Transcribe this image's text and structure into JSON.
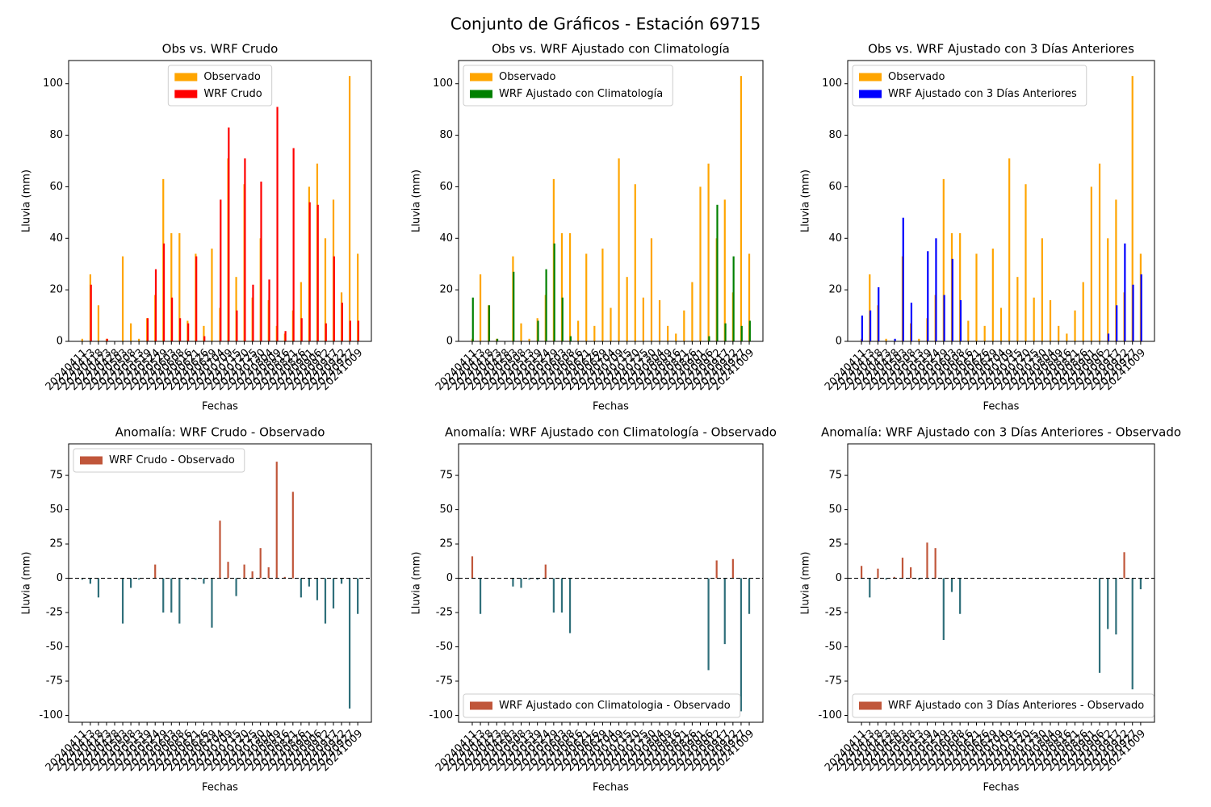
{
  "title": "Conjunto de Gráficos - Estación 69715",
  "chart_data": [
    {
      "type": "bar",
      "title": "Obs vs. WRF Crudo",
      "xlabel": "Fechas",
      "ylabel": "Lluvia (mm)",
      "categories": [
        "20240411",
        "20240413",
        "20240418",
        "20240423",
        "20240428",
        "20240503",
        "20240508",
        "20240513",
        "20240519",
        "20240524",
        "20240529",
        "20240603",
        "20240608",
        "20240616",
        "20240621",
        "20240626",
        "20240629",
        "20240704",
        "20240709",
        "20240715",
        "20240720",
        "20240725",
        "20240730",
        "20240804",
        "20240809",
        "20240816",
        "20240821",
        "20240826",
        "20240901",
        "20240906",
        "20240912",
        "20240917",
        "20240922",
        "20240927",
        "20241009"
      ],
      "series": [
        {
          "name": "Observado",
          "color": "#ffa500",
          "values": [
            1,
            26,
            14,
            1,
            0,
            33,
            7,
            1,
            9,
            18,
            63,
            42,
            42,
            8,
            34,
            6,
            36,
            13,
            71,
            25,
            61,
            17,
            40,
            16,
            6,
            3,
            12,
            23,
            60,
            69,
            40,
            55,
            19,
            103,
            34
          ]
        },
        {
          "name": "WRF Crudo",
          "color": "#ff0000",
          "values": [
            0,
            22,
            0,
            1,
            0,
            0,
            0,
            0,
            9,
            28,
            38,
            17,
            9,
            7,
            33,
            2,
            0,
            55,
            83,
            12,
            71,
            22,
            62,
            24,
            91,
            4,
            75,
            9,
            54,
            53,
            7,
            33,
            15,
            8,
            8
          ]
        }
      ],
      "ylim": [
        0,
        109
      ],
      "yticks": [
        0,
        20,
        40,
        60,
        80,
        100
      ],
      "legend": "upper center"
    },
    {
      "type": "bar",
      "title": "Obs vs. WRF Ajustado con Climatología",
      "xlabel": "Fechas",
      "ylabel": "Lluvia (mm)",
      "categories": [
        "20240411",
        "20240413",
        "20240418",
        "20240423",
        "20240428",
        "20240503",
        "20240508",
        "20240513",
        "20240519",
        "20240524",
        "20240529",
        "20240603",
        "20240608",
        "20240616",
        "20240621",
        "20240626",
        "20240629",
        "20240704",
        "20240709",
        "20240715",
        "20240720",
        "20240725",
        "20240730",
        "20240804",
        "20240809",
        "20240816",
        "20240821",
        "20240826",
        "20240901",
        "20240906",
        "20240912",
        "20240917",
        "20240922",
        "20240927",
        "20241009"
      ],
      "series": [
        {
          "name": "Observado",
          "color": "#ffa500",
          "values": [
            1,
            26,
            14,
            1,
            0,
            33,
            7,
            1,
            9,
            18,
            63,
            42,
            42,
            8,
            34,
            6,
            36,
            13,
            71,
            25,
            61,
            17,
            40,
            16,
            6,
            3,
            12,
            23,
            60,
            69,
            40,
            55,
            19,
            103,
            34
          ]
        },
        {
          "name": "WRF Ajustado con Climatología",
          "color": "#008000",
          "values": [
            17,
            0,
            14,
            1,
            0,
            27,
            0,
            0,
            8,
            28,
            38,
            17,
            2,
            null,
            null,
            null,
            null,
            null,
            null,
            null,
            null,
            null,
            null,
            null,
            null,
            null,
            null,
            null,
            null,
            2,
            53,
            7,
            33,
            6,
            8
          ]
        }
      ],
      "ylim": [
        0,
        109
      ],
      "yticks": [
        0,
        20,
        40,
        60,
        80,
        100
      ],
      "legend": "upper left"
    },
    {
      "type": "bar",
      "title": "Obs vs. WRF Ajustado con 3 Días Anteriores",
      "xlabel": "Fechas",
      "ylabel": "Lluvia (mm)",
      "categories": [
        "20240411",
        "20240413",
        "20240418",
        "20240423",
        "20240428",
        "20240503",
        "20240508",
        "20240513",
        "20240519",
        "20240524",
        "20240529",
        "20240603",
        "20240608",
        "20240616",
        "20240621",
        "20240626",
        "20240629",
        "20240704",
        "20240709",
        "20240715",
        "20240720",
        "20240725",
        "20240730",
        "20240804",
        "20240809",
        "20240816",
        "20240821",
        "20240826",
        "20240901",
        "20240906",
        "20240912",
        "20240917",
        "20240922",
        "20240927",
        "20241009"
      ],
      "series": [
        {
          "name": "Observado",
          "color": "#ffa500",
          "values": [
            1,
            26,
            14,
            1,
            0,
            33,
            7,
            1,
            9,
            18,
            63,
            42,
            42,
            8,
            34,
            6,
            36,
            13,
            71,
            25,
            61,
            17,
            40,
            16,
            6,
            3,
            12,
            23,
            60,
            69,
            40,
            55,
            19,
            103,
            34
          ]
        },
        {
          "name": "WRF Ajustado con 3 Días Anteriores",
          "color": "#0000ff",
          "values": [
            10,
            12,
            21,
            0,
            1,
            48,
            15,
            0,
            35,
            40,
            18,
            32,
            16,
            null,
            null,
            null,
            null,
            null,
            null,
            null,
            null,
            null,
            null,
            null,
            null,
            null,
            null,
            null,
            null,
            0,
            3,
            14,
            38,
            22,
            26
          ]
        }
      ],
      "ylim": [
        0,
        109
      ],
      "yticks": [
        0,
        20,
        40,
        60,
        80,
        100
      ],
      "legend": "upper left"
    },
    {
      "type": "anomaly",
      "title": "Anomalía: WRF Crudo - Observado",
      "xlabel": "Fechas",
      "ylabel": "Lluvia (mm)",
      "categories": [
        "20240411",
        "20240413",
        "20240418",
        "20240423",
        "20240428",
        "20240503",
        "20240508",
        "20240513",
        "20240519",
        "20240524",
        "20240529",
        "20240603",
        "20240608",
        "20240616",
        "20240621",
        "20240626",
        "20240629",
        "20240704",
        "20240709",
        "20240715",
        "20240720",
        "20240725",
        "20240730",
        "20240804",
        "20240809",
        "20240816",
        "20240821",
        "20240826",
        "20240901",
        "20240906",
        "20240912",
        "20240917",
        "20240922",
        "20240927",
        "20241009"
      ],
      "series": [
        {
          "name": "WRF Crudo - Observado",
          "color": "#c0563a",
          "negative_color": "#2f6f7a",
          "values": [
            -1,
            -4,
            -14,
            0,
            0,
            -33,
            -7,
            -1,
            0,
            10,
            -25,
            -25,
            -33,
            -1,
            -1,
            -4,
            -36,
            42,
            12,
            -13,
            10,
            5,
            22,
            8,
            85,
            1,
            63,
            -14,
            -6,
            -16,
            -33,
            -22,
            -4,
            -95,
            -26
          ]
        }
      ],
      "reference_line": 0,
      "ylim": [
        -105,
        98
      ],
      "yticks": [
        -100,
        -75,
        -50,
        -25,
        0,
        25,
        50,
        75
      ],
      "legend": "upper left"
    },
    {
      "type": "anomaly",
      "title": "Anomalía: WRF Ajustado con Climatología - Observado",
      "xlabel": "Fechas",
      "ylabel": "Lluvia (mm)",
      "categories": [
        "20240411",
        "20240413",
        "20240418",
        "20240423",
        "20240428",
        "20240503",
        "20240508",
        "20240513",
        "20240519",
        "20240524",
        "20240529",
        "20240603",
        "20240608",
        "20240616",
        "20240621",
        "20240626",
        "20240629",
        "20240704",
        "20240709",
        "20240715",
        "20240720",
        "20240725",
        "20240730",
        "20240804",
        "20240809",
        "20240816",
        "20240821",
        "20240826",
        "20240901",
        "20240906",
        "20240912",
        "20240917",
        "20240922",
        "20240927",
        "20241009"
      ],
      "series": [
        {
          "name": "WRF Ajustado con Climatologia - Observado",
          "color": "#c0563a",
          "negative_color": "#2f6f7a",
          "values": [
            16,
            -26,
            0,
            0,
            0,
            -6,
            -7,
            -1,
            -1,
            10,
            -25,
            -25,
            -40,
            null,
            null,
            null,
            null,
            null,
            null,
            null,
            null,
            null,
            null,
            null,
            null,
            null,
            null,
            null,
            null,
            -67,
            13,
            -48,
            14,
            -97,
            -26
          ]
        }
      ],
      "reference_line": 0,
      "ylim": [
        -105,
        98
      ],
      "yticks": [
        -100,
        -75,
        -50,
        -25,
        0,
        25,
        50,
        75
      ],
      "legend": "lower left"
    },
    {
      "type": "anomaly",
      "title": "Anomalía: WRF Ajustado con 3 Días Anteriores - Observado",
      "xlabel": "Fechas",
      "ylabel": "Lluvia (mm)",
      "categories": [
        "20240411",
        "20240413",
        "20240418",
        "20240423",
        "20240428",
        "20240503",
        "20240508",
        "20240513",
        "20240519",
        "20240524",
        "20240529",
        "20240603",
        "20240608",
        "20240616",
        "20240621",
        "20240626",
        "20240629",
        "20240704",
        "20240709",
        "20240715",
        "20240720",
        "20240725",
        "20240730",
        "20240804",
        "20240809",
        "20240816",
        "20240821",
        "20240826",
        "20240901",
        "20240906",
        "20240912",
        "20240917",
        "20240922",
        "20240927",
        "20241009"
      ],
      "series": [
        {
          "name": "WRF Ajustado con 3 Días Anteriores - Observado",
          "color": "#c0563a",
          "negative_color": "#2f6f7a",
          "values": [
            9,
            -14,
            7,
            -1,
            1,
            15,
            8,
            -1,
            26,
            22,
            -45,
            -10,
            -26,
            null,
            null,
            null,
            null,
            null,
            null,
            null,
            null,
            null,
            null,
            null,
            null,
            null,
            null,
            null,
            null,
            -69,
            -37,
            -41,
            19,
            -81,
            -8
          ]
        }
      ],
      "reference_line": 0,
      "ylim": [
        -105,
        98
      ],
      "yticks": [
        -100,
        -75,
        -50,
        -25,
        0,
        25,
        50,
        75
      ],
      "legend": "lower left"
    }
  ]
}
